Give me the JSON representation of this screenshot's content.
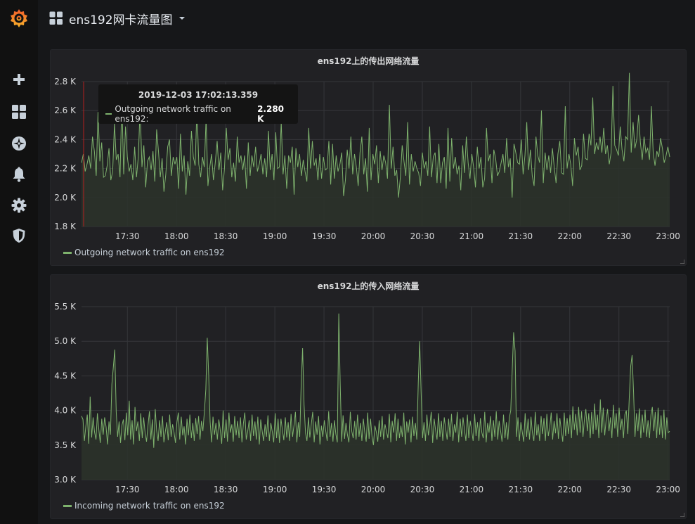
{
  "dashboard": {
    "title": "ens192网卡流量图"
  },
  "sidebar": {
    "items": [
      {
        "name": "grafana-logo-icon"
      },
      {
        "name": "create-icon"
      },
      {
        "name": "dashboards-icon"
      },
      {
        "name": "explore-icon"
      },
      {
        "name": "alerting-icon"
      },
      {
        "name": "configuration-icon"
      },
      {
        "name": "server-admin-icon"
      }
    ]
  },
  "tooltip": {
    "time": "2019-12-03 17:02:13.359",
    "series": "Outgoing network traffic on ens192:",
    "value": "2.280 K"
  },
  "chart_data": [
    {
      "type": "area",
      "title": "ens192上的传出网络流量",
      "x_ticks": [
        "17:30",
        "18:00",
        "18:30",
        "19:00",
        "19:30",
        "20:00",
        "20:30",
        "21:00",
        "21:30",
        "22:00",
        "22:30",
        "23:00"
      ],
      "x_range": [
        "17:02",
        "23:01"
      ],
      "y_ticks": [
        "1.8 K",
        "2.0 K",
        "2.2 K",
        "2.4 K",
        "2.6 K",
        "2.8 K"
      ],
      "ylim": [
        1800,
        2800
      ],
      "grid": true,
      "legend_position": "bottom-left",
      "colors": {
        "line": "#7eb26d",
        "fill": "#2b332a"
      },
      "series": [
        {
          "name": "Outgoing network traffic on ens192",
          "values": [
            2240,
            2300,
            2180,
            2230,
            2290,
            2200,
            2420,
            2320,
            2150,
            2590,
            2250,
            2380,
            2140,
            2150,
            2220,
            2340,
            2120,
            2180,
            2510,
            2260,
            2300,
            2140,
            2690,
            2160,
            2490,
            2280,
            2180,
            2230,
            2120,
            2350,
            2140,
            2280,
            2620,
            2210,
            2360,
            2070,
            2250,
            2280,
            2190,
            2320,
            2110,
            2470,
            2320,
            2140,
            2270,
            2040,
            2160,
            2350,
            2400,
            2150,
            2280,
            2230,
            2280,
            2060,
            2440,
            2180,
            2290,
            2020,
            2250,
            2150,
            2460,
            2280,
            2220,
            2630,
            2230,
            2140,
            2280,
            2210,
            2550,
            2080,
            2210,
            2300,
            2120,
            2240,
            2390,
            2190,
            2310,
            2050,
            2200,
            2480,
            2260,
            2340,
            2140,
            2240,
            2110,
            2420,
            2240,
            2290,
            2190,
            2290,
            2060,
            2380,
            2150,
            2290,
            2210,
            2350,
            2180,
            2230,
            2300,
            2160,
            2270,
            2140,
            2460,
            2190,
            2300,
            2120,
            2450,
            2200,
            2210,
            2520,
            2160,
            2290,
            2060,
            2290,
            2240,
            2350,
            2020,
            2340,
            2210,
            2300,
            2150,
            2260,
            2180,
            2110,
            2480,
            2200,
            2390,
            2220,
            2270,
            2120,
            2300,
            2130,
            2280,
            2190,
            2200,
            2390,
            2090,
            2370,
            2130,
            2290,
            2180,
            2230,
            2310,
            2010,
            2120,
            2330,
            2200,
            2420,
            2160,
            2300,
            2210,
            2080,
            2310,
            2420,
            2160,
            2270,
            2040,
            2480,
            2120,
            2300,
            2230,
            2360,
            2100,
            2320,
            2190,
            2290,
            2240,
            2130,
            2640,
            2200,
            2350,
            2150,
            2190,
            2000,
            2140,
            2360,
            2250,
            2150,
            2520,
            2090,
            2300,
            2180,
            2250,
            2200,
            2170,
            2080,
            2310,
            2200,
            2250,
            2150,
            2490,
            2140,
            2280,
            2310,
            2100,
            2370,
            2100,
            2240,
            2280,
            2060,
            2480,
            2110,
            2410,
            2200,
            2280,
            2160,
            2220,
            2050,
            2360,
            2170,
            2420,
            2240,
            2130,
            2300,
            2210,
            2070,
            2350,
            2200,
            2280,
            2070,
            2130,
            2480,
            2250,
            2300,
            2100,
            2330,
            2270,
            2150,
            2180,
            2240,
            2300,
            2170,
            2410,
            2210,
            2270,
            2000,
            2370,
            2310,
            2240,
            2230,
            2400,
            2160,
            2290,
            2520,
            2190,
            2330,
            2150,
            2080,
            2420,
            2290,
            2240,
            2600,
            2100,
            2310,
            2190,
            2290,
            2170,
            2340,
            2210,
            2100,
            2300,
            2390,
            2170,
            2160,
            2630,
            2200,
            2300,
            2230,
            2080,
            2410,
            2290,
            2350,
            2190,
            2220,
            2440,
            2270,
            2260,
            2440,
            2360,
            2690,
            2300,
            2380,
            2330,
            2420,
            2310,
            2480,
            2300,
            2360,
            2230,
            2310,
            2770,
            2360,
            2330,
            2290,
            2490,
            2330,
            2250,
            2420,
            2400,
            2860,
            2310,
            2520,
            2340,
            2400,
            2570,
            2380,
            2260,
            2420,
            2310,
            2340,
            2260,
            2630,
            2310,
            2220,
            2320,
            2280,
            2410,
            2340,
            2240,
            2290,
            2350,
            2280
          ]
        }
      ]
    },
    {
      "type": "area",
      "title": "ens192上的传入网络流量",
      "x_ticks": [
        "17:30",
        "18:00",
        "18:30",
        "19:00",
        "19:30",
        "20:00",
        "20:30",
        "21:00",
        "21:30",
        "22:00",
        "22:30",
        "23:00"
      ],
      "x_range": [
        "17:02",
        "23:01"
      ],
      "y_ticks": [
        "3.0 K",
        "3.5 K",
        "4.0 K",
        "4.5 K",
        "5.0 K",
        "5.5 K"
      ],
      "ylim": [
        3000,
        5500
      ],
      "grid": true,
      "legend_position": "bottom-left",
      "colors": {
        "line": "#7eb26d",
        "fill": "#2b332a"
      },
      "series": [
        {
          "name": "Incoming network traffic on ens192",
          "values": [
            3920,
            3870,
            3560,
            3780,
            3940,
            3520,
            4200,
            3610,
            3900,
            3690,
            3580,
            3960,
            3720,
            3530,
            3880,
            3650,
            3900,
            3760,
            3510,
            3840,
            3650,
            4380,
            4620,
            4880,
            3980,
            3620,
            3840,
            3530,
            3790,
            3870,
            3570,
            3970,
            3640,
            4140,
            3580,
            3860,
            3510,
            4050,
            3700,
            3840,
            3560,
            3960,
            3600,
            3900,
            3680,
            3550,
            3790,
            3990,
            3580,
            3870,
            3460,
            4020,
            3710,
            3560,
            3860,
            3620,
            3920,
            3540,
            3700,
            3830,
            3570,
            3940,
            3620,
            3800,
            3690,
            3530,
            3830,
            3970,
            3580,
            3910,
            3640,
            3770,
            3510,
            3880,
            3640,
            3940,
            3600,
            3820,
            3560,
            3890,
            3660,
            3920,
            3580,
            3850,
            3700,
            3980,
            4310,
            5050,
            4510,
            3840,
            3540,
            3910,
            3650,
            3820,
            3580,
            3870,
            3720,
            3520,
            4000,
            3600,
            3870,
            3550,
            3970,
            3680,
            3800,
            3550,
            3920,
            3640,
            3850,
            3600,
            3900,
            3540,
            3810,
            3970,
            3580,
            3700,
            3860,
            3560,
            3940,
            3630,
            3840,
            3580,
            3910,
            3510,
            3870,
            3700,
            3560,
            3800,
            3620,
            3930,
            3560,
            3820,
            3690,
            3540,
            3960,
            3600,
            3880,
            3530,
            3880,
            3720,
            3570,
            3900,
            3610,
            3830,
            3560,
            3950,
            3620,
            3780,
            3980,
            3540,
            3830,
            3620,
            4380,
            4900,
            4080,
            3670,
            3560,
            3900,
            3610,
            3810,
            3980,
            3540,
            3840,
            3650,
            3920,
            3510,
            3780,
            3620,
            3860,
            3700,
            3560,
            3990,
            3620,
            3820,
            3550,
            3860,
            3660,
            3540,
            5400,
            4400,
            3550,
            3930,
            3590,
            3820,
            3650,
            3540,
            3980,
            3700,
            3600,
            3850,
            3580,
            3940,
            3620,
            3820,
            3560,
            3880,
            3680,
            3550,
            3970,
            3590,
            3880,
            3620,
            3500,
            3780,
            3690,
            3550,
            3860,
            3620,
            3920,
            3580,
            3800,
            3700,
            3600,
            3950,
            3540,
            3850,
            3680,
            3960,
            3560,
            3880,
            3600,
            3780,
            3620,
            3970,
            3510,
            3840,
            3680,
            3870,
            3540,
            3910,
            3630,
            3820,
            3580,
            4400,
            5000,
            4260,
            3600,
            3830,
            3560,
            3940,
            3640,
            3790,
            3980,
            3530,
            3880,
            3720,
            3580,
            3960,
            3620,
            3850,
            3560,
            3900,
            3740,
            3580,
            3880,
            3620,
            3950,
            3560,
            3800,
            3680,
            3980,
            3540,
            3880,
            3620,
            3900,
            3720,
            3560,
            3940,
            3600,
            3850,
            3700,
            3560,
            3950,
            3630,
            3830,
            3560,
            3890,
            3680,
            3600,
            3980,
            3540,
            3820,
            3680,
            3920,
            3560,
            3860,
            3620,
            3990,
            3580,
            3850,
            3700,
            3550,
            3940,
            3600,
            3830,
            3580,
            3890,
            4000,
            4560,
            5130,
            4860,
            3620,
            3900,
            3560,
            3830,
            3690,
            3550,
            3960,
            3620,
            3880,
            3580,
            3910,
            3680,
            3560,
            3980,
            3640,
            3800,
            3560,
            3920,
            3660,
            3890,
            3560,
            3950,
            3630,
            3760,
            3970,
            3580,
            3850,
            3670,
            3960,
            3590,
            3890,
            3710,
            3550,
            3970,
            3630,
            3890,
            3660,
            3940,
            3600,
            4060,
            3720,
            3950,
            3640,
            4050,
            3680,
            3990,
            3620,
            3880,
            4020,
            3700,
            3960,
            3600,
            3980,
            3660,
            4100,
            3720,
            3940,
            3600,
            4160,
            3680,
            4040,
            3640,
            3860,
            4020,
            3700,
            3900,
            3600,
            4080,
            3740,
            3960,
            3620,
            4040,
            3720,
            3880,
            3600,
            3940,
            4000,
            3660,
            4170,
            4640,
            4800,
            4260,
            3620,
            3960,
            3700,
            4030,
            3600,
            3940,
            3680,
            4010,
            3620,
            3860,
            3600,
            3940,
            4050,
            3700,
            3980,
            3600,
            4040,
            3650,
            3930,
            3600,
            4010,
            3580,
            3900,
            3680,
            3700
          ]
        }
      ]
    }
  ]
}
